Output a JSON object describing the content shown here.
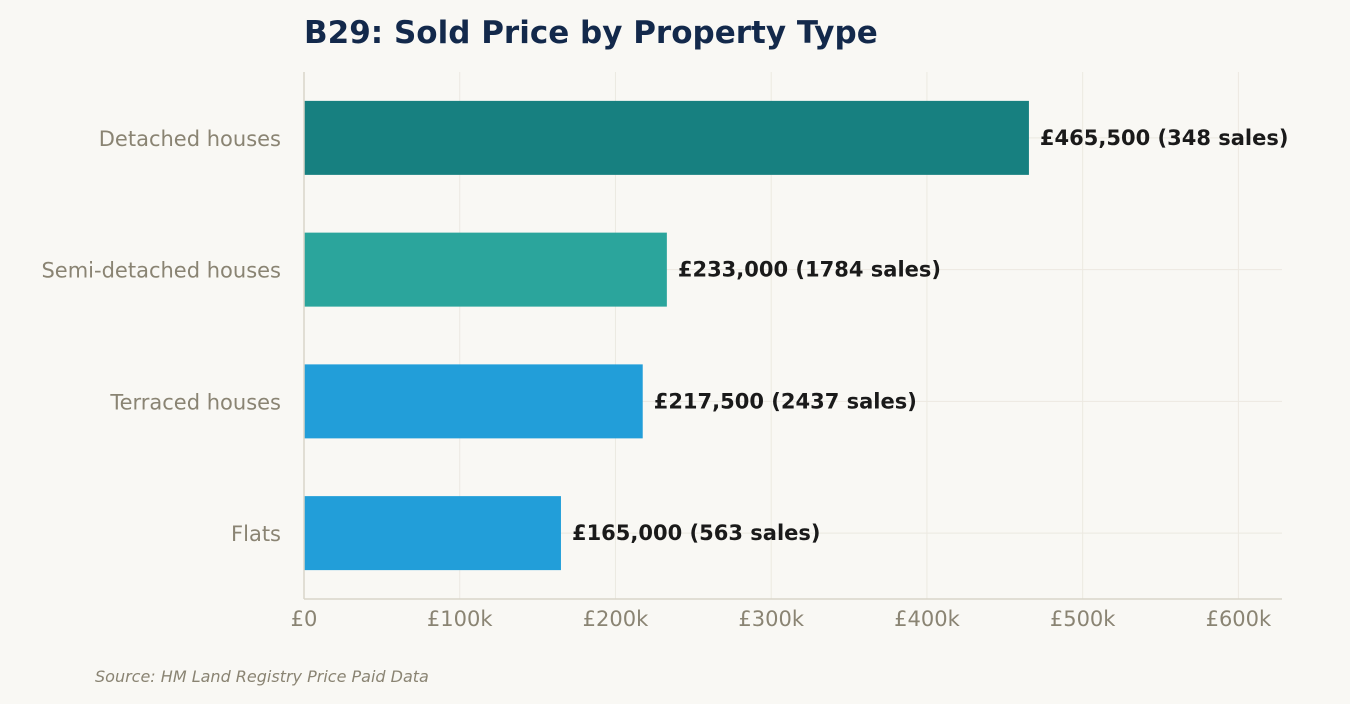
{
  "chart_data": {
    "type": "bar",
    "orientation": "horizontal",
    "title": "B29: Sold Price by Property Type",
    "source": "Source: HM Land Registry Price Paid Data",
    "categories": [
      "Detached houses",
      "Semi-detached houses",
      "Terraced houses",
      "Flats"
    ],
    "values": [
      465500,
      233000,
      217500,
      165000
    ],
    "sales": [
      348,
      1784,
      2437,
      563
    ],
    "data_labels": [
      "£465,500  (348 sales)",
      "£233,000  (1784 sales)",
      "£217,500  (2437 sales)",
      "£165,000  (563 sales)"
    ],
    "bar_colors": [
      "#178080",
      "#2ba59c",
      "#229ed9",
      "#229ed9"
    ],
    "xlim": [
      0,
      628000
    ],
    "xticks": [
      0,
      100000,
      200000,
      300000,
      400000,
      500000,
      600000
    ],
    "xtick_labels": [
      "£0",
      "£100k",
      "£200k",
      "£300k",
      "£400k",
      "£500k",
      "£600k"
    ],
    "xlabel": "",
    "ylabel": "",
    "grid": true,
    "legend": "none"
  }
}
